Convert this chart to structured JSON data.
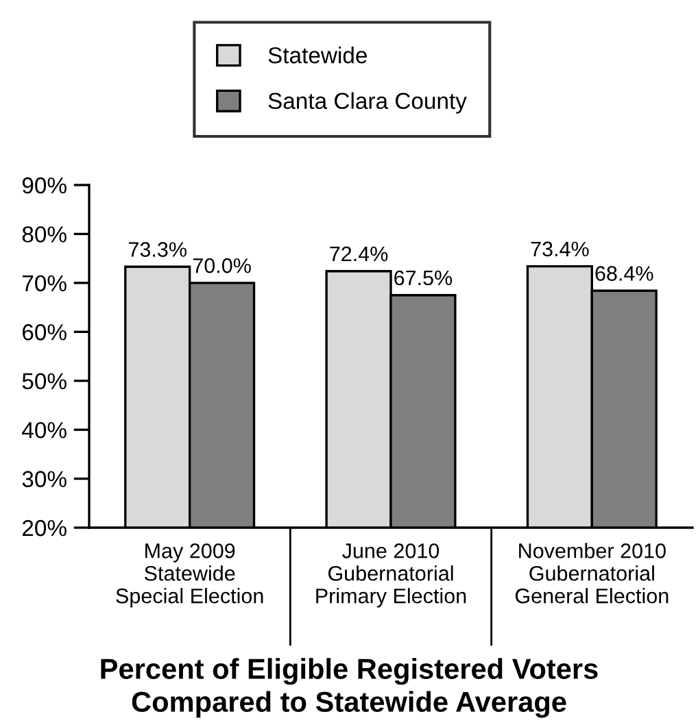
{
  "chart_data": {
    "type": "bar",
    "title": "Percent of Eligible Registered Voters\nCompared to Statewide Average",
    "categories": [
      "May 2009\nStatewide\nSpecial Election",
      "June 2010\nGubernatorial\nPrimary Election",
      "November 2010\nGubernatorial\nGeneral Election"
    ],
    "series": [
      {
        "name": "Statewide",
        "color": "#d9d9d9",
        "values": [
          73.3,
          72.4,
          73.4
        ],
        "value_labels": [
          "73.3%",
          "72.4%",
          "73.4%"
        ]
      },
      {
        "name": "Santa Clara County",
        "color": "#7f7f7f",
        "values": [
          70.0,
          67.5,
          68.4
        ],
        "value_labels": [
          "70.0%",
          "67.5%",
          "68.4%"
        ]
      }
    ],
    "ylim": [
      20,
      90
    ],
    "yticks": [
      {
        "value": 20,
        "label": "20%"
      },
      {
        "value": 30,
        "label": "30%"
      },
      {
        "value": 40,
        "label": "40%"
      },
      {
        "value": 50,
        "label": "50%"
      },
      {
        "value": 60,
        "label": "60%"
      },
      {
        "value": 70,
        "label": "70%"
      },
      {
        "value": 80,
        "label": "80%"
      },
      {
        "value": 90,
        "label": "90%"
      }
    ],
    "legend": "top",
    "grid": false
  }
}
